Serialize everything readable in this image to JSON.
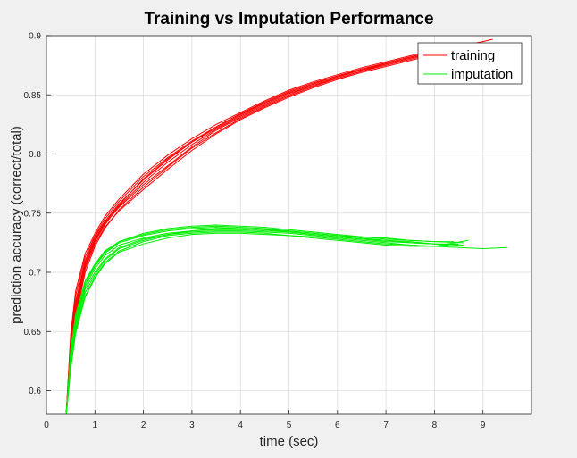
{
  "chart_data": {
    "type": "line",
    "title": "Training vs Imputation Performance",
    "xlabel": "time (sec)",
    "ylabel": "prediction accuracy (correct/total)",
    "xlim": [
      0,
      10
    ],
    "ylim": [
      0.58,
      0.9
    ],
    "xticks": [
      0,
      1,
      2,
      3,
      4,
      5,
      6,
      7,
      8,
      9
    ],
    "yticks": [
      0.6,
      0.65,
      0.7,
      0.75,
      0.8,
      0.85,
      0.9
    ],
    "xtick_labels": [
      "0",
      "1",
      "2",
      "3",
      "4",
      "5",
      "6",
      "7",
      "8",
      "9"
    ],
    "ytick_labels": [
      "0.6",
      "0.65",
      "0.7",
      "0.75",
      "0.8",
      "0.85",
      "0.9"
    ],
    "grid": true,
    "legend_position": "top-right",
    "colors": {
      "training": "#ff0000",
      "imputation": "#00ee00",
      "background": "#f0f0f0",
      "axes": "#ffffff",
      "grid": "#dcdcdc"
    },
    "series": [
      {
        "name": "training",
        "color": "#ff0000",
        "runs": [
          {
            "x": [
              0.4,
              0.5,
              0.6,
              0.8,
              1.0,
              1.2,
              1.5,
              2.0,
              2.5,
              3.0,
              3.5,
              4.0,
              4.5,
              5.0,
              5.5,
              6.0,
              6.5,
              7.0,
              7.5,
              8.0,
              8.5,
              9.0,
              9.2
            ],
            "y": [
              0.575,
              0.64,
              0.675,
              0.71,
              0.73,
              0.743,
              0.758,
              0.778,
              0.795,
              0.81,
              0.822,
              0.833,
              0.843,
              0.852,
              0.859,
              0.866,
              0.872,
              0.877,
              0.882,
              0.887,
              0.891,
              0.895,
              0.897
            ]
          },
          {
            "x": [
              0.4,
              0.5,
              0.6,
              0.8,
              1.0,
              1.2,
              1.5,
              2.0,
              2.5,
              3.0,
              3.5,
              4.0,
              4.5,
              5.0,
              5.5,
              6.0,
              6.5,
              7.0,
              7.5,
              8.0,
              8.5
            ],
            "y": [
              0.575,
              0.63,
              0.668,
              0.705,
              0.726,
              0.74,
              0.756,
              0.776,
              0.793,
              0.808,
              0.821,
              0.832,
              0.842,
              0.851,
              0.858,
              0.864,
              0.87,
              0.876,
              0.881,
              0.886,
              0.89
            ]
          },
          {
            "x": [
              0.4,
              0.5,
              0.6,
              0.8,
              1.0,
              1.2,
              1.5,
              2.0,
              2.5,
              3.0,
              3.5,
              4.0,
              4.5,
              5.0,
              5.5,
              6.0,
              6.5,
              7.0,
              7.5,
              8.0,
              8.4
            ],
            "y": [
              0.575,
              0.645,
              0.68,
              0.713,
              0.731,
              0.745,
              0.76,
              0.781,
              0.797,
              0.811,
              0.823,
              0.834,
              0.844,
              0.853,
              0.86,
              0.866,
              0.871,
              0.876,
              0.881,
              0.886,
              0.889
            ]
          },
          {
            "x": [
              0.4,
              0.5,
              0.6,
              0.8,
              1.0,
              1.2,
              1.5,
              2.0,
              2.5,
              3.0,
              3.5,
              4.0,
              4.5,
              5.0,
              5.5,
              6.0,
              6.5,
              7.0,
              7.5,
              8.0,
              8.6
            ],
            "y": [
              0.575,
              0.625,
              0.662,
              0.7,
              0.722,
              0.737,
              0.753,
              0.772,
              0.789,
              0.805,
              0.818,
              0.83,
              0.84,
              0.849,
              0.857,
              0.864,
              0.87,
              0.875,
              0.88,
              0.885,
              0.89
            ]
          },
          {
            "x": [
              0.4,
              0.5,
              0.6,
              0.8,
              1.0,
              1.2,
              1.5,
              2.0,
              2.5,
              3.0,
              3.5,
              4.0,
              4.5,
              5.0,
              5.5,
              6.0,
              6.5,
              7.0,
              7.5,
              8.0,
              8.5
            ],
            "y": [
              0.575,
              0.637,
              0.672,
              0.708,
              0.728,
              0.742,
              0.757,
              0.779,
              0.796,
              0.81,
              0.823,
              0.834,
              0.843,
              0.852,
              0.859,
              0.866,
              0.871,
              0.877,
              0.882,
              0.887,
              0.891
            ]
          },
          {
            "x": [
              0.4,
              0.5,
              0.6,
              0.8,
              1.0,
              1.2,
              1.5,
              2.0,
              2.5,
              3.0,
              3.5,
              4.0,
              4.5,
              5.0,
              5.5,
              6.0,
              6.5,
              7.0,
              7.5,
              8.0,
              8.3
            ],
            "y": [
              0.575,
              0.633,
              0.67,
              0.707,
              0.727,
              0.741,
              0.755,
              0.774,
              0.79,
              0.806,
              0.82,
              0.831,
              0.841,
              0.85,
              0.858,
              0.865,
              0.871,
              0.876,
              0.881,
              0.886,
              0.889
            ]
          },
          {
            "x": [
              0.4,
              0.5,
              0.6,
              0.8,
              1.0,
              1.2,
              1.5,
              2.0,
              2.5,
              3.0,
              3.5,
              4.0,
              4.5,
              5.0,
              5.5,
              6.0,
              6.5,
              7.0,
              7.5,
              8.0,
              8.7
            ],
            "y": [
              0.575,
              0.648,
              0.684,
              0.716,
              0.733,
              0.747,
              0.762,
              0.783,
              0.799,
              0.813,
              0.825,
              0.835,
              0.845,
              0.854,
              0.861,
              0.867,
              0.873,
              0.878,
              0.883,
              0.888,
              0.892
            ]
          },
          {
            "x": [
              0.4,
              0.5,
              0.6,
              0.8,
              1.0,
              1.2,
              1.5,
              2.0,
              2.5,
              3.0,
              3.5,
              4.0,
              4.5,
              5.0,
              5.5,
              6.0,
              6.5,
              7.0,
              7.5,
              8.0,
              8.5
            ],
            "y": [
              0.575,
              0.628,
              0.665,
              0.703,
              0.724,
              0.738,
              0.752,
              0.77,
              0.787,
              0.803,
              0.817,
              0.829,
              0.839,
              0.848,
              0.856,
              0.863,
              0.869,
              0.874,
              0.879,
              0.884,
              0.888
            ]
          }
        ]
      },
      {
        "name": "imputation",
        "color": "#00ee00",
        "runs": [
          {
            "x": [
              0.4,
              0.5,
              0.6,
              0.8,
              1.0,
              1.2,
              1.5,
              2.0,
              2.5,
              3.0,
              3.5,
              4.0,
              4.5,
              5.0,
              5.5,
              6.0,
              6.5,
              7.0,
              7.5,
              8.0,
              8.5,
              9.0,
              9.5
            ],
            "y": [
              0.575,
              0.625,
              0.655,
              0.686,
              0.7,
              0.711,
              0.721,
              0.728,
              0.732,
              0.734,
              0.735,
              0.735,
              0.734,
              0.733,
              0.731,
              0.729,
              0.727,
              0.725,
              0.723,
              0.722,
              0.721,
              0.72,
              0.721
            ]
          },
          {
            "x": [
              0.4,
              0.5,
              0.6,
              0.8,
              1.0,
              1.2,
              1.5,
              2.0,
              2.5,
              3.0,
              3.5,
              4.0,
              4.5,
              5.0,
              5.5,
              6.0,
              6.5,
              7.0,
              7.5,
              8.0,
              8.5
            ],
            "y": [
              0.575,
              0.63,
              0.66,
              0.69,
              0.705,
              0.716,
              0.725,
              0.731,
              0.735,
              0.737,
              0.738,
              0.737,
              0.736,
              0.735,
              0.733,
              0.731,
              0.729,
              0.727,
              0.726,
              0.724,
              0.723
            ]
          },
          {
            "x": [
              0.4,
              0.5,
              0.6,
              0.8,
              1.0,
              1.2,
              1.5,
              2.0,
              2.5,
              3.0,
              3.5,
              4.0,
              4.5,
              5.0,
              5.5,
              6.0,
              6.5,
              7.0,
              7.5,
              8.0,
              8.7
            ],
            "y": [
              0.575,
              0.62,
              0.65,
              0.68,
              0.696,
              0.708,
              0.718,
              0.726,
              0.731,
              0.733,
              0.734,
              0.734,
              0.733,
              0.731,
              0.73,
              0.728,
              0.726,
              0.724,
              0.723,
              0.722,
              0.727
            ]
          },
          {
            "x": [
              0.4,
              0.5,
              0.6,
              0.8,
              1.0,
              1.2,
              1.5,
              2.0,
              2.5,
              3.0,
              3.5,
              4.0,
              4.5,
              5.0,
              5.5,
              6.0,
              6.5,
              7.0,
              7.5,
              8.0,
              8.4
            ],
            "y": [
              0.575,
              0.635,
              0.664,
              0.693,
              0.707,
              0.718,
              0.726,
              0.732,
              0.736,
              0.738,
              0.739,
              0.738,
              0.737,
              0.735,
              0.733,
              0.731,
              0.73,
              0.728,
              0.727,
              0.726,
              0.726
            ]
          },
          {
            "x": [
              0.4,
              0.5,
              0.6,
              0.8,
              1.0,
              1.2,
              1.5,
              2.0,
              2.5,
              3.0,
              3.5,
              4.0,
              4.5,
              5.0,
              5.5,
              6.0,
              6.5,
              7.0,
              7.5,
              8.0,
              8.6
            ],
            "y": [
              0.575,
              0.627,
              0.657,
              0.688,
              0.703,
              0.714,
              0.723,
              0.729,
              0.733,
              0.735,
              0.736,
              0.736,
              0.735,
              0.734,
              0.732,
              0.73,
              0.728,
              0.726,
              0.725,
              0.724,
              0.723
            ]
          },
          {
            "x": [
              0.4,
              0.5,
              0.6,
              0.8,
              1.0,
              1.2,
              1.5,
              2.0,
              2.5,
              3.0,
              3.5,
              4.0,
              4.5,
              5.0,
              5.5,
              6.0,
              6.5,
              7.0,
              7.5,
              8.0,
              8.5
            ],
            "y": [
              0.575,
              0.623,
              0.652,
              0.683,
              0.698,
              0.71,
              0.72,
              0.727,
              0.732,
              0.735,
              0.737,
              0.737,
              0.736,
              0.734,
              0.732,
              0.73,
              0.728,
              0.727,
              0.725,
              0.724,
              0.724
            ]
          },
          {
            "x": [
              0.4,
              0.5,
              0.6,
              0.8,
              1.0,
              1.2,
              1.5,
              2.0,
              2.5,
              3.0,
              3.5,
              4.0,
              4.5,
              5.0,
              5.5,
              6.0,
              6.5,
              7.0,
              7.5,
              8.0,
              8.6
            ],
            "y": [
              0.575,
              0.632,
              0.662,
              0.692,
              0.706,
              0.717,
              0.726,
              0.733,
              0.737,
              0.739,
              0.74,
              0.739,
              0.738,
              0.736,
              0.734,
              0.732,
              0.73,
              0.729,
              0.727,
              0.726,
              0.725
            ]
          },
          {
            "x": [
              0.4,
              0.5,
              0.6,
              0.8,
              1.0,
              1.2,
              1.5,
              2.0,
              2.5,
              3.0,
              3.5,
              4.0,
              4.5,
              5.0,
              5.5,
              6.0,
              6.5,
              7.0,
              7.5,
              8.0,
              8.3
            ],
            "y": [
              0.575,
              0.618,
              0.648,
              0.679,
              0.695,
              0.707,
              0.717,
              0.724,
              0.729,
              0.732,
              0.733,
              0.733,
              0.732,
              0.731,
              0.729,
              0.727,
              0.725,
              0.723,
              0.722,
              0.722,
              0.723
            ]
          }
        ]
      }
    ]
  }
}
